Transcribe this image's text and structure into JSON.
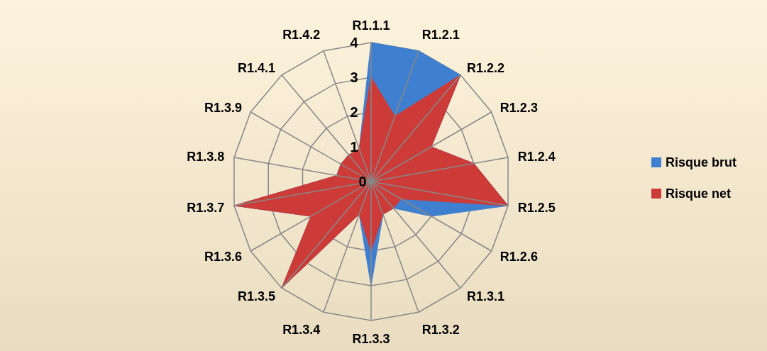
{
  "chart_data": {
    "type": "radar",
    "categories": [
      "R1.1.1",
      "R1.2.1",
      "R1.2.2",
      "R1.2.3",
      "R1.2.4",
      "R1.2.5",
      "R1.2.6",
      "R1.3.1",
      "R1.3.2",
      "R1.3.3",
      "R1.3.4",
      "R1.3.5",
      "R1.3.6",
      "R1.3.7",
      "R1.3.8",
      "R1.3.9",
      "R1.4.1",
      "R1.4.2"
    ],
    "series": [
      {
        "name": "Risque brut",
        "color": "#3f7fcf",
        "values": [
          4,
          4,
          4,
          2,
          3,
          4,
          2,
          1,
          1,
          3,
          1,
          4,
          2,
          4,
          1,
          1,
          1,
          1
        ]
      },
      {
        "name": "Risque net",
        "color": "#cc3b38",
        "values": [
          3,
          2,
          4,
          2,
          3,
          4,
          1,
          1,
          1,
          2,
          1,
          4,
          2,
          4,
          1,
          1,
          1,
          1
        ]
      }
    ],
    "ylim": [
      0,
      4
    ],
    "yticks": [
      0,
      1,
      2,
      3,
      4
    ],
    "grid": true,
    "legend": "right"
  }
}
